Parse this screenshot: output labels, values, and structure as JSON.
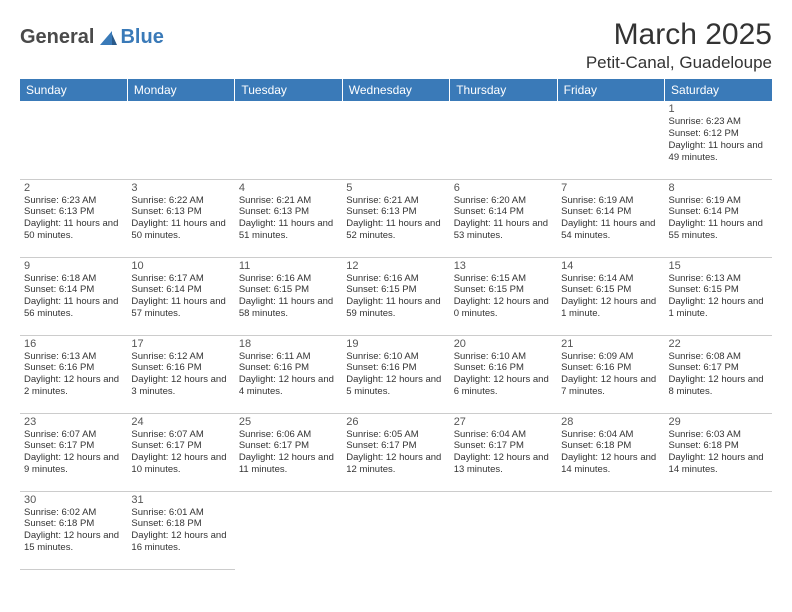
{
  "logo": {
    "text1": "General",
    "text2": "Blue",
    "text1_color": "#4a4a4a",
    "text2_color": "#3a7ab8"
  },
  "title": "March 2025",
  "location": "Petit-Canal, Guadeloupe",
  "calendar": {
    "type": "table",
    "header_bg": "#3a7ab8",
    "header_fg": "#ffffff",
    "border_color": "#3a7ab8",
    "grid_color": "#cccccc",
    "background_color": "#ffffff",
    "text_color": "#333333",
    "daynum_color": "#555555",
    "cell_fontsize": 9.5,
    "header_fontsize": 12,
    "daynum_fontsize": 11,
    "columns": [
      "Sunday",
      "Monday",
      "Tuesday",
      "Wednesday",
      "Thursday",
      "Friday",
      "Saturday"
    ],
    "weeks": [
      [
        null,
        null,
        null,
        null,
        null,
        null,
        {
          "day": "1",
          "sunrise": "Sunrise: 6:23 AM",
          "sunset": "Sunset: 6:12 PM",
          "daylight": "Daylight: 11 hours and 49 minutes."
        }
      ],
      [
        {
          "day": "2",
          "sunrise": "Sunrise: 6:23 AM",
          "sunset": "Sunset: 6:13 PM",
          "daylight": "Daylight: 11 hours and 50 minutes."
        },
        {
          "day": "3",
          "sunrise": "Sunrise: 6:22 AM",
          "sunset": "Sunset: 6:13 PM",
          "daylight": "Daylight: 11 hours and 50 minutes."
        },
        {
          "day": "4",
          "sunrise": "Sunrise: 6:21 AM",
          "sunset": "Sunset: 6:13 PM",
          "daylight": "Daylight: 11 hours and 51 minutes."
        },
        {
          "day": "5",
          "sunrise": "Sunrise: 6:21 AM",
          "sunset": "Sunset: 6:13 PM",
          "daylight": "Daylight: 11 hours and 52 minutes."
        },
        {
          "day": "6",
          "sunrise": "Sunrise: 6:20 AM",
          "sunset": "Sunset: 6:14 PM",
          "daylight": "Daylight: 11 hours and 53 minutes."
        },
        {
          "day": "7",
          "sunrise": "Sunrise: 6:19 AM",
          "sunset": "Sunset: 6:14 PM",
          "daylight": "Daylight: 11 hours and 54 minutes."
        },
        {
          "day": "8",
          "sunrise": "Sunrise: 6:19 AM",
          "sunset": "Sunset: 6:14 PM",
          "daylight": "Daylight: 11 hours and 55 minutes."
        }
      ],
      [
        {
          "day": "9",
          "sunrise": "Sunrise: 6:18 AM",
          "sunset": "Sunset: 6:14 PM",
          "daylight": "Daylight: 11 hours and 56 minutes."
        },
        {
          "day": "10",
          "sunrise": "Sunrise: 6:17 AM",
          "sunset": "Sunset: 6:14 PM",
          "daylight": "Daylight: 11 hours and 57 minutes."
        },
        {
          "day": "11",
          "sunrise": "Sunrise: 6:16 AM",
          "sunset": "Sunset: 6:15 PM",
          "daylight": "Daylight: 11 hours and 58 minutes."
        },
        {
          "day": "12",
          "sunrise": "Sunrise: 6:16 AM",
          "sunset": "Sunset: 6:15 PM",
          "daylight": "Daylight: 11 hours and 59 minutes."
        },
        {
          "day": "13",
          "sunrise": "Sunrise: 6:15 AM",
          "sunset": "Sunset: 6:15 PM",
          "daylight": "Daylight: 12 hours and 0 minutes."
        },
        {
          "day": "14",
          "sunrise": "Sunrise: 6:14 AM",
          "sunset": "Sunset: 6:15 PM",
          "daylight": "Daylight: 12 hours and 1 minute."
        },
        {
          "day": "15",
          "sunrise": "Sunrise: 6:13 AM",
          "sunset": "Sunset: 6:15 PM",
          "daylight": "Daylight: 12 hours and 1 minute."
        }
      ],
      [
        {
          "day": "16",
          "sunrise": "Sunrise: 6:13 AM",
          "sunset": "Sunset: 6:16 PM",
          "daylight": "Daylight: 12 hours and 2 minutes."
        },
        {
          "day": "17",
          "sunrise": "Sunrise: 6:12 AM",
          "sunset": "Sunset: 6:16 PM",
          "daylight": "Daylight: 12 hours and 3 minutes."
        },
        {
          "day": "18",
          "sunrise": "Sunrise: 6:11 AM",
          "sunset": "Sunset: 6:16 PM",
          "daylight": "Daylight: 12 hours and 4 minutes."
        },
        {
          "day": "19",
          "sunrise": "Sunrise: 6:10 AM",
          "sunset": "Sunset: 6:16 PM",
          "daylight": "Daylight: 12 hours and 5 minutes."
        },
        {
          "day": "20",
          "sunrise": "Sunrise: 6:10 AM",
          "sunset": "Sunset: 6:16 PM",
          "daylight": "Daylight: 12 hours and 6 minutes."
        },
        {
          "day": "21",
          "sunrise": "Sunrise: 6:09 AM",
          "sunset": "Sunset: 6:16 PM",
          "daylight": "Daylight: 12 hours and 7 minutes."
        },
        {
          "day": "22",
          "sunrise": "Sunrise: 6:08 AM",
          "sunset": "Sunset: 6:17 PM",
          "daylight": "Daylight: 12 hours and 8 minutes."
        }
      ],
      [
        {
          "day": "23",
          "sunrise": "Sunrise: 6:07 AM",
          "sunset": "Sunset: 6:17 PM",
          "daylight": "Daylight: 12 hours and 9 minutes."
        },
        {
          "day": "24",
          "sunrise": "Sunrise: 6:07 AM",
          "sunset": "Sunset: 6:17 PM",
          "daylight": "Daylight: 12 hours and 10 minutes."
        },
        {
          "day": "25",
          "sunrise": "Sunrise: 6:06 AM",
          "sunset": "Sunset: 6:17 PM",
          "daylight": "Daylight: 12 hours and 11 minutes."
        },
        {
          "day": "26",
          "sunrise": "Sunrise: 6:05 AM",
          "sunset": "Sunset: 6:17 PM",
          "daylight": "Daylight: 12 hours and 12 minutes."
        },
        {
          "day": "27",
          "sunrise": "Sunrise: 6:04 AM",
          "sunset": "Sunset: 6:17 PM",
          "daylight": "Daylight: 12 hours and 13 minutes."
        },
        {
          "day": "28",
          "sunrise": "Sunrise: 6:04 AM",
          "sunset": "Sunset: 6:18 PM",
          "daylight": "Daylight: 12 hours and 14 minutes."
        },
        {
          "day": "29",
          "sunrise": "Sunrise: 6:03 AM",
          "sunset": "Sunset: 6:18 PM",
          "daylight": "Daylight: 12 hours and 14 minutes."
        }
      ],
      [
        {
          "day": "30",
          "sunrise": "Sunrise: 6:02 AM",
          "sunset": "Sunset: 6:18 PM",
          "daylight": "Daylight: 12 hours and 15 minutes."
        },
        {
          "day": "31",
          "sunrise": "Sunrise: 6:01 AM",
          "sunset": "Sunset: 6:18 PM",
          "daylight": "Daylight: 12 hours and 16 minutes."
        },
        null,
        null,
        null,
        null,
        null
      ]
    ]
  }
}
